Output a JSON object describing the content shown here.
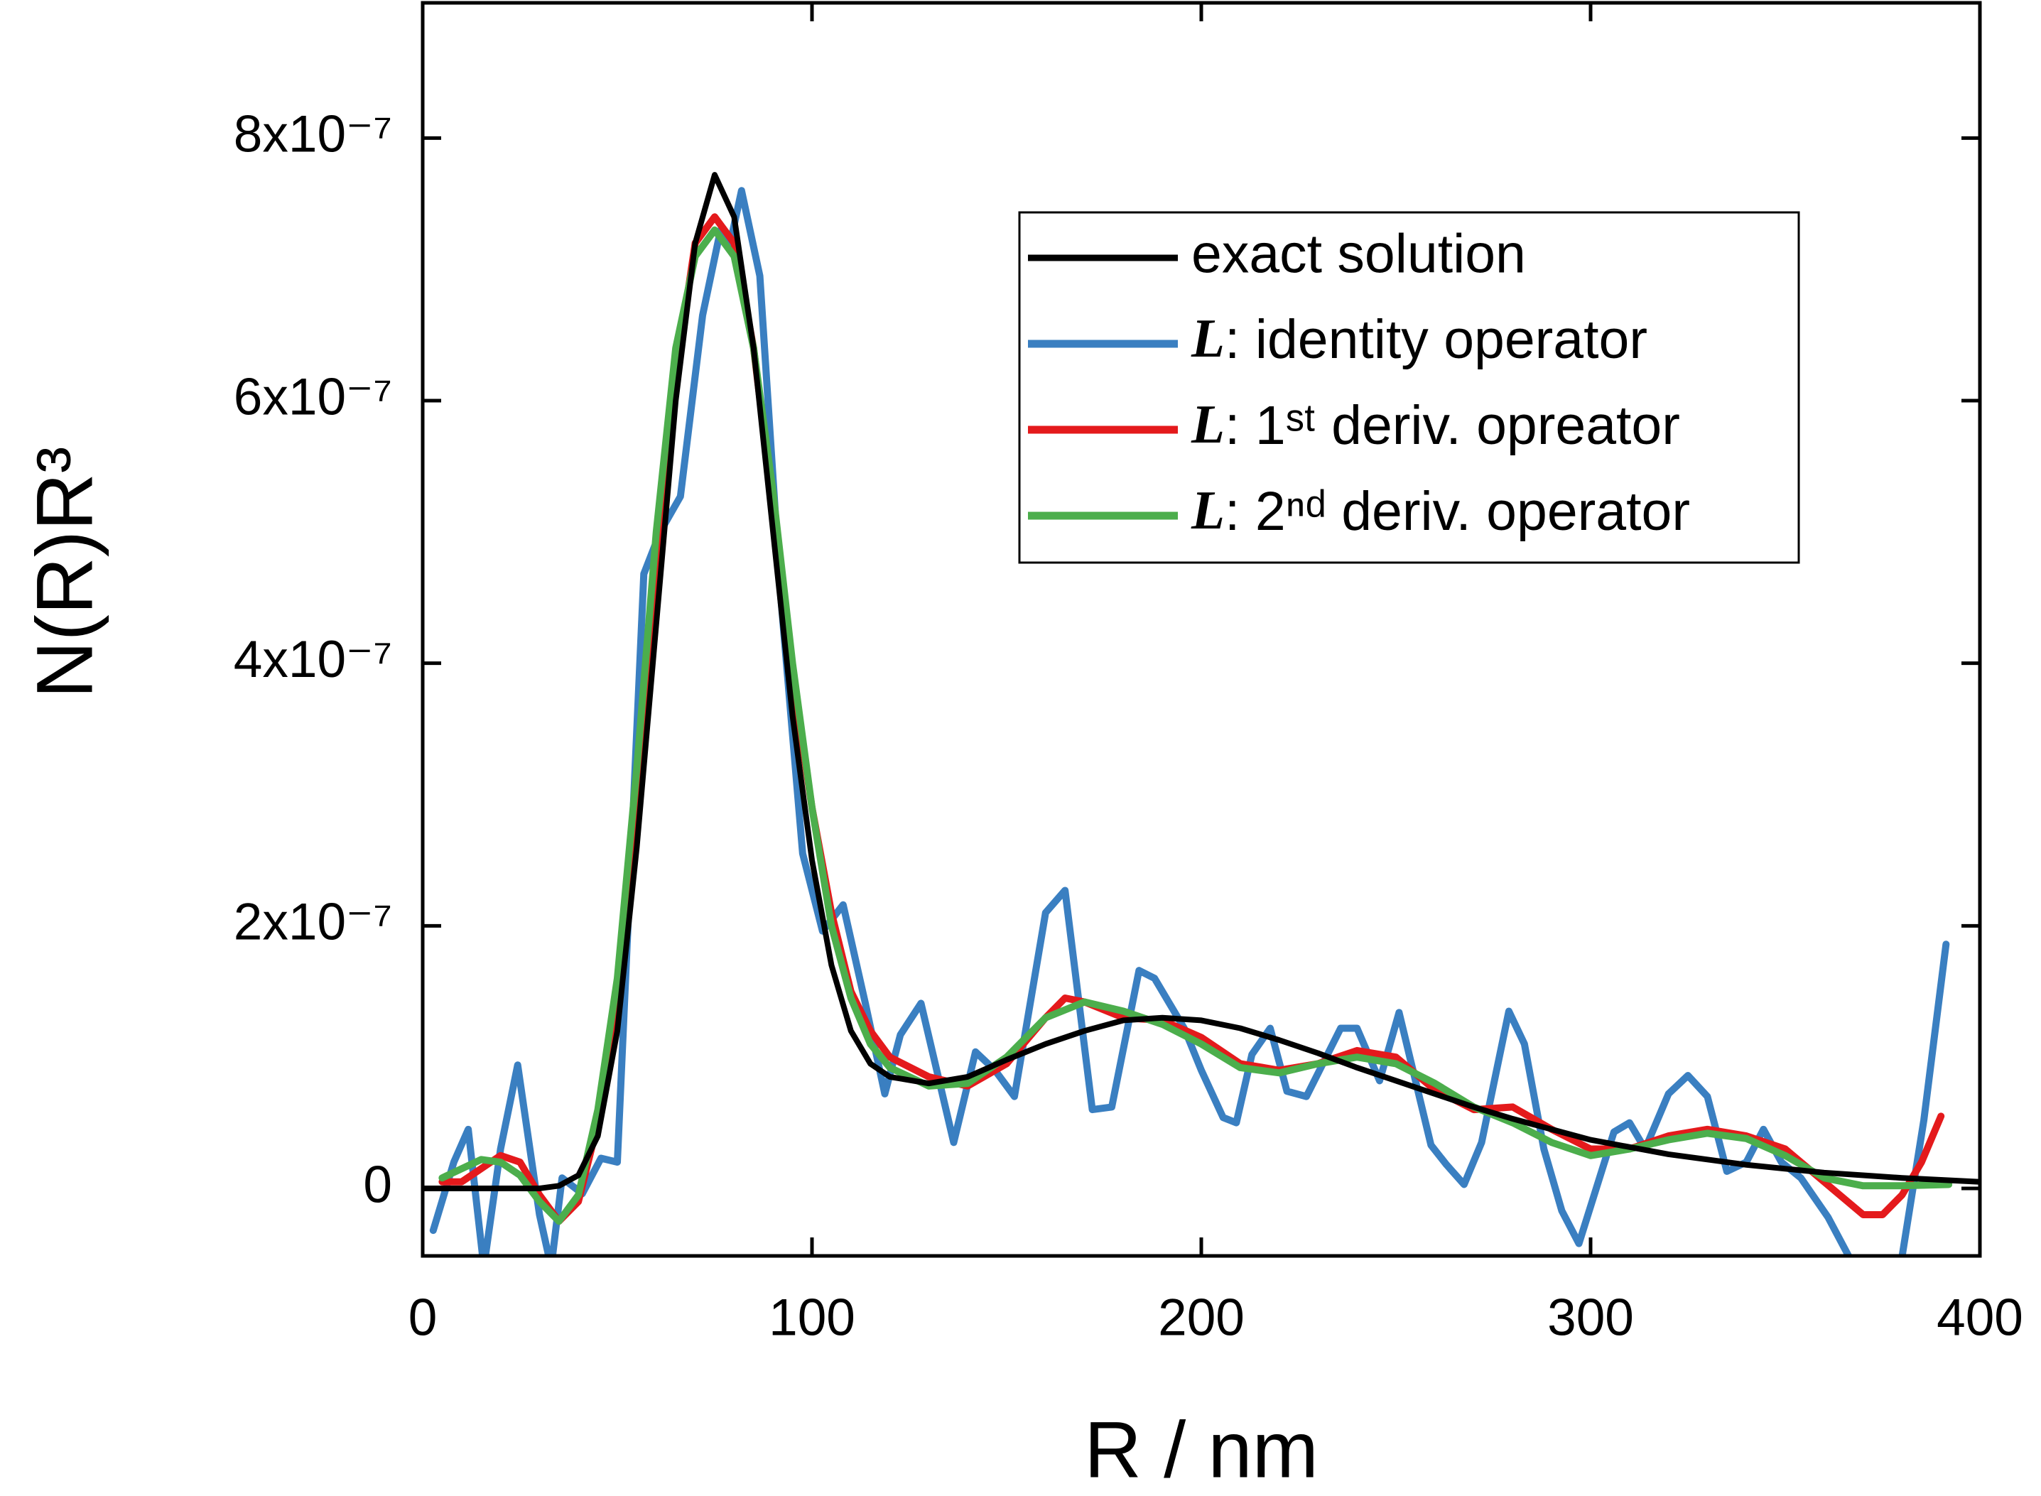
{
  "chart_data": {
    "type": "line",
    "x_label": "R / nm",
    "y_label": "N(R)R³",
    "xlim": [
      0,
      400
    ],
    "xticks": [
      0,
      100,
      200,
      300,
      400
    ],
    "ylim": [
      -5.14e-08,
      9.03e-07
    ],
    "yticks": [
      0,
      {
        "value": 2e-07,
        "label": "2x10⁻⁷"
      },
      {
        "value": 4e-07,
        "label": "4x10⁻⁷"
      },
      {
        "value": 6e-07,
        "label": "6x10⁻⁷"
      },
      {
        "value": 8e-07,
        "label": "8x10⁻⁷"
      }
    ],
    "legend": "upper right",
    "series": [
      {
        "name": "exact solution",
        "color": "#000000",
        "x": [
          0,
          10,
          20,
          30,
          35,
          40,
          45,
          50,
          55,
          60,
          65,
          70,
          75,
          80,
          85,
          90,
          95,
          100,
          105,
          110,
          115,
          120,
          130,
          140,
          150,
          160,
          170,
          180,
          190,
          200,
          210,
          220,
          230,
          240,
          250,
          260,
          270,
          280,
          290,
          300,
          320,
          340,
          360,
          380,
          400
        ],
        "values": [
          0,
          0,
          0,
          0,
          2e-09,
          1e-08,
          4e-08,
          1.2e-07,
          2.6e-07,
          4.3e-07,
          6e-07,
          7.2e-07,
          7.72e-07,
          7.4e-07,
          6.4e-07,
          5e-07,
          3.6e-07,
          2.5e-07,
          1.7e-07,
          1.2e-07,
          9.5e-08,
          8.5e-08,
          8e-08,
          8.5e-08,
          9.8e-08,
          1.1e-07,
          1.2e-07,
          1.28e-07,
          1.3e-07,
          1.28e-07,
          1.22e-07,
          1.13e-07,
          1.03e-07,
          9.2e-08,
          8.2e-08,
          7.2e-08,
          6.2e-08,
          5.3e-08,
          4.5e-08,
          3.7e-08,
          2.6e-08,
          1.8e-08,
          1.2e-08,
          8e-09,
          5e-09
        ]
      },
      {
        "name": "L: identity operator",
        "color": "#3a7fc1",
        "x": [
          2.7,
          8,
          11.7,
          15.7,
          20,
          24.4,
          30,
          33,
          35.8,
          41,
          45.8,
          50,
          56.8,
          61,
          66.2,
          71.9,
          76.5,
          79,
          81.9,
          86.6,
          92,
          97.6,
          102.7,
          108,
          113.7,
          118.7,
          122.7,
          128,
          136.4,
          142,
          147,
          152,
          160,
          165,
          172,
          177,
          184,
          188,
          195.6,
          200,
          205.6,
          209,
          213,
          217.7,
          222,
          227,
          235.8,
          240,
          245.8,
          250.8,
          259,
          263,
          267.5,
          272,
          279,
          283,
          288,
          292.6,
          297,
          306,
          310,
          314,
          320,
          325,
          330,
          335,
          340,
          344.4,
          349,
          354,
          361,
          367.8,
          373,
          377,
          380,
          385.6,
          391.3
        ],
        "values": [
          -3.2e-08,
          2e-08,
          4.5e-08,
          -6e-08,
          3e-08,
          9.4e-08,
          -2e-08,
          -6e-08,
          8e-09,
          -4e-09,
          2.3e-08,
          2e-08,
          4.68e-07,
          5e-07,
          5.27e-07,
          6.65e-07,
          7.3e-07,
          7.2e-07,
          7.6e-07,
          6.95e-07,
          4.5e-07,
          2.55e-07,
          1.96e-07,
          2.16e-07,
          1.41e-07,
          7.2e-08,
          1.17e-07,
          1.41e-07,
          3.5e-08,
          1.04e-07,
          9e-08,
          7e-08,
          2.1e-07,
          2.27e-07,
          6e-08,
          6.2e-08,
          1.66e-07,
          1.6e-07,
          1.22e-07,
          9e-08,
          5.4e-08,
          5e-08,
          1.02e-07,
          1.22e-07,
          7.4e-08,
          7e-08,
          1.22e-07,
          1.22e-07,
          8.2e-08,
          1.34e-07,
          3.3e-08,
          1.8e-08,
          3e-09,
          3.5e-08,
          1.35e-07,
          1.1e-07,
          3e-08,
          -1.7e-08,
          -4.2e-08,
          4.3e-08,
          5e-08,
          3e-08,
          7.2e-08,
          8.6e-08,
          7e-08,
          1.3e-08,
          2e-08,
          4.5e-08,
          2e-08,
          8e-09,
          -2.2e-08,
          -6e-08,
          -1e-07,
          -1e-07,
          -5.2e-08,
          5.2e-08,
          1.86e-07
        ]
      },
      {
        "name": "L: 1ˢᵗ deriv. opreator",
        "color": "#e41a1c",
        "x": [
          5,
          10,
          15,
          20,
          25,
          30,
          35,
          40,
          45,
          50,
          55,
          60,
          65,
          70,
          75,
          80,
          85,
          90,
          95,
          100,
          105,
          110,
          115,
          120,
          130,
          140,
          150,
          160,
          165,
          170,
          180,
          190,
          200,
          210,
          220,
          230,
          240,
          250,
          260,
          270,
          280,
          290,
          300,
          310,
          320,
          330,
          340,
          350,
          360,
          370,
          375,
          380,
          385,
          390
        ],
        "values": [
          5e-09,
          5e-09,
          1.5e-08,
          2.5e-08,
          2e-08,
          -5e-09,
          -2.5e-08,
          -1e-08,
          5e-08,
          1.5e-07,
          3e-07,
          4.8e-07,
          6.2e-07,
          7.2e-07,
          7.4e-07,
          7.2e-07,
          6.4e-07,
          5.2e-07,
          3.9e-07,
          2.9e-07,
          2.1e-07,
          1.5e-07,
          1.2e-07,
          1e-07,
          8.5e-08,
          7.8e-08,
          9.5e-08,
          1.3e-07,
          1.45e-07,
          1.42e-07,
          1.3e-07,
          1.28e-07,
          1.15e-07,
          9.5e-08,
          9e-08,
          9.5e-08,
          1.05e-07,
          1e-07,
          7.5e-08,
          6e-08,
          6.2e-08,
          4.5e-08,
          3e-08,
          3e-08,
          4e-08,
          4.5e-08,
          4e-08,
          3e-08,
          5e-09,
          -2e-08,
          -2e-08,
          -5e-09,
          2e-08,
          5.5e-08
        ]
      },
      {
        "name": "L: 2ⁿᵈ deriv. operator",
        "color": "#4cae4c",
        "x": [
          5,
          15,
          20,
          25,
          30,
          35,
          40,
          45,
          50,
          55,
          60,
          65,
          70,
          75,
          80,
          85,
          90,
          95,
          100,
          105,
          110,
          115,
          120,
          130,
          140,
          150,
          160,
          170,
          180,
          190,
          200,
          210,
          220,
          230,
          240,
          250,
          260,
          270,
          280,
          290,
          300,
          310,
          320,
          330,
          340,
          350,
          360,
          370,
          380,
          392
        ],
        "values": [
          8e-09,
          2.2e-08,
          2e-08,
          1e-08,
          -1e-08,
          -2.5e-08,
          -5e-09,
          6e-08,
          1.6e-07,
          3.2e-07,
          5e-07,
          6.4e-07,
          7.1e-07,
          7.3e-07,
          7.1e-07,
          6.4e-07,
          5.3e-07,
          4e-07,
          2.9e-07,
          2e-07,
          1.45e-07,
          1.1e-07,
          9.2e-08,
          7.8e-08,
          8e-08,
          1e-07,
          1.3e-07,
          1.42e-07,
          1.35e-07,
          1.25e-07,
          1.1e-07,
          9.2e-08,
          8.8e-08,
          9.5e-08,
          1e-07,
          9.5e-08,
          8e-08,
          6.2e-08,
          5e-08,
          3.5e-08,
          2.5e-08,
          3e-08,
          3.7e-08,
          4.2e-08,
          3.8e-08,
          2.5e-08,
          8e-09,
          2e-09,
          2e-09,
          3e-09
        ]
      }
    ]
  }
}
